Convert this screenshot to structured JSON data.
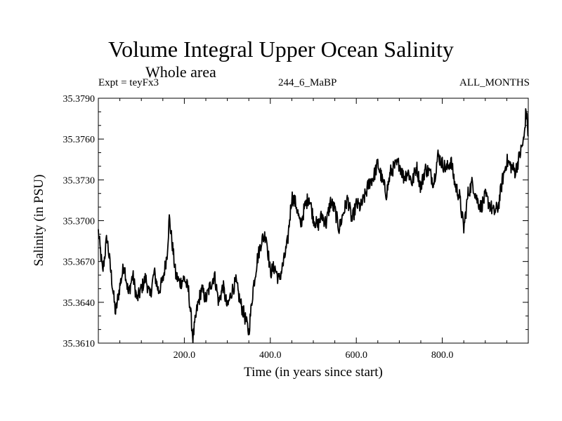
{
  "title": "Volume Integral Upper Ocean Salinity",
  "subtitle": "Whole area",
  "expt_label": "Expt = teyFx3",
  "run_label": "244_6_MaBP",
  "months_label": "ALL_MONTHS",
  "chart_data": {
    "type": "line",
    "title": "Volume Integral Upper Ocean Salinity",
    "xlabel": "Time (in years since start)",
    "ylabel": "Salinity (in PSU)",
    "xlim": [
      0,
      1000
    ],
    "ylim": [
      35.361,
      35.379
    ],
    "x_ticks": [
      200,
      400,
      600,
      800
    ],
    "x_tick_labels": [
      "200.0",
      "400.0",
      "600.0",
      "800.0"
    ],
    "y_ticks": [
      35.361,
      35.364,
      35.367,
      35.37,
      35.373,
      35.376,
      35.379
    ],
    "y_tick_labels": [
      "35.3610",
      "35.3640",
      "35.3670",
      "35.3700",
      "35.3730",
      "35.3760",
      "35.3790"
    ],
    "grid": false,
    "series": [
      {
        "name": "Salinity",
        "x": [
          0,
          10,
          20,
          30,
          40,
          50,
          60,
          70,
          80,
          90,
          100,
          110,
          120,
          130,
          140,
          150,
          160,
          165,
          170,
          180,
          190,
          200,
          210,
          220,
          230,
          240,
          250,
          260,
          270,
          280,
          290,
          300,
          310,
          320,
          330,
          340,
          350,
          360,
          370,
          380,
          390,
          400,
          410,
          420,
          430,
          440,
          450,
          460,
          470,
          480,
          490,
          500,
          510,
          520,
          530,
          540,
          550,
          560,
          570,
          580,
          590,
          600,
          610,
          620,
          630,
          640,
          650,
          660,
          670,
          680,
          690,
          700,
          710,
          720,
          730,
          740,
          750,
          760,
          770,
          780,
          790,
          800,
          810,
          820,
          830,
          840,
          850,
          860,
          870,
          880,
          890,
          900,
          910,
          920,
          930,
          940,
          950,
          960,
          970,
          980,
          990,
          995,
          1000
        ],
        "y": [
          35.3692,
          35.3662,
          35.3688,
          35.366,
          35.3632,
          35.3652,
          35.3668,
          35.3646,
          35.366,
          35.3642,
          35.365,
          35.3658,
          35.3644,
          35.3662,
          35.3648,
          35.3656,
          35.3676,
          35.3702,
          35.3688,
          35.366,
          35.3654,
          35.3658,
          35.3648,
          35.3614,
          35.3636,
          35.365,
          35.3642,
          35.3652,
          35.366,
          35.364,
          35.3652,
          35.3636,
          35.3648,
          35.3655,
          35.364,
          35.363,
          35.3618,
          35.365,
          35.3672,
          35.3686,
          35.369,
          35.3662,
          35.3666,
          35.3656,
          35.3668,
          35.3684,
          35.3718,
          35.3712,
          35.3696,
          35.371,
          35.3718,
          35.3702,
          35.3696,
          35.3704,
          35.3698,
          35.3714,
          35.3708,
          35.3694,
          35.3706,
          35.3716,
          35.37,
          35.3712,
          35.371,
          35.3718,
          35.3728,
          35.3732,
          35.3742,
          35.373,
          35.372,
          35.3736,
          35.374,
          35.3742,
          35.3732,
          35.3736,
          35.3728,
          35.374,
          35.3724,
          35.3738,
          35.3736,
          35.3728,
          35.3748,
          35.3742,
          35.3738,
          35.3744,
          35.3726,
          35.3718,
          35.3694,
          35.372,
          35.3728,
          35.3716,
          35.371,
          35.3718,
          35.3712,
          35.3706,
          35.371,
          35.373,
          35.3744,
          35.374,
          35.3736,
          35.3748,
          35.376,
          35.3782,
          35.3762
        ]
      }
    ]
  }
}
